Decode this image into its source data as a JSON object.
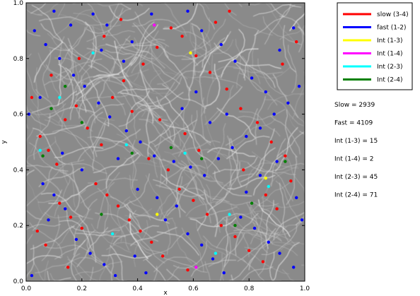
{
  "chart_data": {
    "type": "scatter",
    "xlabel": "x",
    "ylabel": "y",
    "xlim": [
      0.0,
      1.0
    ],
    "ylim": [
      0.0,
      1.0
    ],
    "xticks": [
      0.0,
      0.2,
      0.4,
      0.6,
      0.8,
      1.0
    ],
    "yticks": [
      0.0,
      0.2,
      0.4,
      0.6,
      0.8,
      1.0
    ],
    "xtick_labels": [
      "0.0",
      "0.2",
      "0.4",
      "0.6",
      "0.8",
      "1.0"
    ],
    "ytick_labels": [
      "0.0",
      "0.2",
      "0.4",
      "0.6",
      "0.8",
      "1.0"
    ],
    "background": "grey streamline field",
    "legend_position": "top-right outside plot",
    "series": [
      {
        "name": "slow (3-4)",
        "color": "#ff0000",
        "points": [
          [
            0.05,
            0.52
          ],
          [
            0.08,
            0.47
          ],
          [
            0.11,
            0.42
          ],
          [
            0.14,
            0.58
          ],
          [
            0.18,
            0.63
          ],
          [
            0.22,
            0.55
          ],
          [
            0.27,
            0.49
          ],
          [
            0.31,
            0.66
          ],
          [
            0.35,
            0.72
          ],
          [
            0.42,
            0.78
          ],
          [
            0.47,
            0.84
          ],
          [
            0.52,
            0.91
          ],
          [
            0.56,
            0.88
          ],
          [
            0.61,
            0.81
          ],
          [
            0.66,
            0.75
          ],
          [
            0.72,
            0.69
          ],
          [
            0.77,
            0.62
          ],
          [
            0.83,
            0.57
          ],
          [
            0.88,
            0.5
          ],
          [
            0.93,
            0.45
          ],
          [
            0.25,
            0.35
          ],
          [
            0.29,
            0.31
          ],
          [
            0.33,
            0.27
          ],
          [
            0.37,
            0.22
          ],
          [
            0.41,
            0.18
          ],
          [
            0.45,
            0.14
          ],
          [
            0.49,
            0.09
          ],
          [
            0.55,
            0.33
          ],
          [
            0.6,
            0.29
          ],
          [
            0.65,
            0.24
          ],
          [
            0.7,
            0.2
          ],
          [
            0.75,
            0.16
          ],
          [
            0.8,
            0.11
          ],
          [
            0.85,
            0.07
          ],
          [
            0.12,
            0.28
          ],
          [
            0.16,
            0.23
          ],
          [
            0.2,
            0.19
          ],
          [
            0.04,
            0.18
          ],
          [
            0.07,
            0.13
          ],
          [
            0.62,
            0.47
          ],
          [
            0.57,
            0.53
          ],
          [
            0.48,
            0.58
          ],
          [
            0.38,
            0.61
          ],
          [
            0.86,
            0.31
          ],
          [
            0.9,
            0.26
          ],
          [
            0.95,
            0.36
          ],
          [
            0.68,
            0.93
          ],
          [
            0.73,
            0.97
          ],
          [
            0.34,
            0.94
          ],
          [
            0.28,
            0.88
          ],
          [
            0.19,
            0.8
          ],
          [
            0.09,
            0.74
          ],
          [
            0.02,
            0.66
          ],
          [
            0.44,
            0.44
          ],
          [
            0.51,
            0.4
          ],
          [
            0.58,
            0.04
          ],
          [
            0.15,
            0.05
          ],
          [
            0.97,
            0.86
          ],
          [
            0.92,
            0.78
          ],
          [
            0.78,
            0.4
          ]
        ]
      },
      {
        "name": "fast (1-2)",
        "color": "#0000ff",
        "points": [
          [
            0.03,
            0.9
          ],
          [
            0.07,
            0.85
          ],
          [
            0.12,
            0.8
          ],
          [
            0.17,
            0.74
          ],
          [
            0.21,
            0.7
          ],
          [
            0.26,
            0.64
          ],
          [
            0.3,
            0.59
          ],
          [
            0.36,
            0.54
          ],
          [
            0.41,
            0.5
          ],
          [
            0.46,
            0.45
          ],
          [
            0.53,
            0.43
          ],
          [
            0.59,
            0.41
          ],
          [
            0.64,
            0.38
          ],
          [
            0.69,
            0.44
          ],
          [
            0.74,
            0.48
          ],
          [
            0.79,
            0.52
          ],
          [
            0.84,
            0.55
          ],
          [
            0.89,
            0.6
          ],
          [
            0.94,
            0.64
          ],
          [
            0.98,
            0.7
          ],
          [
            0.06,
            0.35
          ],
          [
            0.1,
            0.31
          ],
          [
            0.14,
            0.26
          ],
          [
            0.18,
            0.15
          ],
          [
            0.23,
            0.1
          ],
          [
            0.28,
            0.06
          ],
          [
            0.32,
            0.02
          ],
          [
            0.39,
            0.09
          ],
          [
            0.43,
            0.03
          ],
          [
            0.5,
            0.22
          ],
          [
            0.54,
            0.27
          ],
          [
            0.58,
            0.17
          ],
          [
            0.63,
            0.13
          ],
          [
            0.67,
            0.08
          ],
          [
            0.71,
            0.03
          ],
          [
            0.77,
            0.23
          ],
          [
            0.82,
            0.19
          ],
          [
            0.87,
            0.14
          ],
          [
            0.91,
            0.1
          ],
          [
            0.96,
            0.05
          ],
          [
            0.24,
            0.96
          ],
          [
            0.29,
            0.92
          ],
          [
            0.38,
            0.86
          ],
          [
            0.45,
            0.96
          ],
          [
            0.58,
            0.97
          ],
          [
            0.63,
            0.9
          ],
          [
            0.7,
            0.85
          ],
          [
            0.75,
            0.79
          ],
          [
            0.81,
            0.73
          ],
          [
            0.86,
            0.68
          ],
          [
            0.91,
            0.83
          ],
          [
            0.96,
            0.91
          ],
          [
            0.01,
            0.6
          ],
          [
            0.05,
            0.66
          ],
          [
            0.13,
            0.46
          ],
          [
            0.2,
            0.4
          ],
          [
            0.33,
            0.44
          ],
          [
            0.4,
            0.33
          ],
          [
            0.47,
            0.3
          ],
          [
            0.56,
            0.62
          ],
          [
            0.61,
            0.68
          ],
          [
            0.66,
            0.57
          ],
          [
            0.72,
            0.6
          ],
          [
            0.79,
            0.32
          ],
          [
            0.84,
            0.38
          ],
          [
            0.9,
            0.43
          ],
          [
            0.97,
            0.3
          ],
          [
            0.99,
            0.22
          ],
          [
            0.02,
            0.02
          ],
          [
            0.08,
            0.22
          ],
          [
            0.35,
            0.79
          ],
          [
            0.27,
            0.83
          ],
          [
            0.16,
            0.92
          ],
          [
            0.1,
            0.97
          ]
        ]
      },
      {
        "name": "Int (1-3)",
        "color": "#ffff00",
        "points": [
          [
            0.47,
            0.24
          ],
          [
            0.59,
            0.82
          ],
          [
            0.86,
            0.37
          ]
        ]
      },
      {
        "name": "Int (1-4)",
        "color": "#ff00ff",
        "points": [
          [
            0.46,
            0.92
          ],
          [
            0.61,
            0.05
          ]
        ]
      },
      {
        "name": "Int (2-3)",
        "color": "#00ffff",
        "points": [
          [
            0.12,
            0.66
          ],
          [
            0.24,
            0.82
          ],
          [
            0.36,
            0.49
          ],
          [
            0.57,
            0.46
          ],
          [
            0.73,
            0.24
          ],
          [
            0.87,
            0.34
          ],
          [
            0.68,
            0.1
          ],
          [
            0.05,
            0.47
          ],
          [
            0.31,
            0.17
          ]
        ]
      },
      {
        "name": "Int (2-4)",
        "color": "#008000",
        "points": [
          [
            0.09,
            0.62
          ],
          [
            0.2,
            0.57
          ],
          [
            0.38,
            0.46
          ],
          [
            0.52,
            0.48
          ],
          [
            0.63,
            0.44
          ],
          [
            0.75,
            0.2
          ],
          [
            0.81,
            0.28
          ],
          [
            0.93,
            0.43
          ],
          [
            0.27,
            0.24
          ],
          [
            0.06,
            0.45
          ],
          [
            0.14,
            0.7
          ]
        ]
      }
    ]
  },
  "stats": [
    {
      "label": "Slow = 2939"
    },
    {
      "label": "Fast = 4109"
    },
    {
      "label": "Int (1-3) = 15"
    },
    {
      "label": "Int (1-4) = 2"
    },
    {
      "label": "Int (2-3) = 45"
    },
    {
      "label": "Int (2-4) = 71"
    }
  ]
}
